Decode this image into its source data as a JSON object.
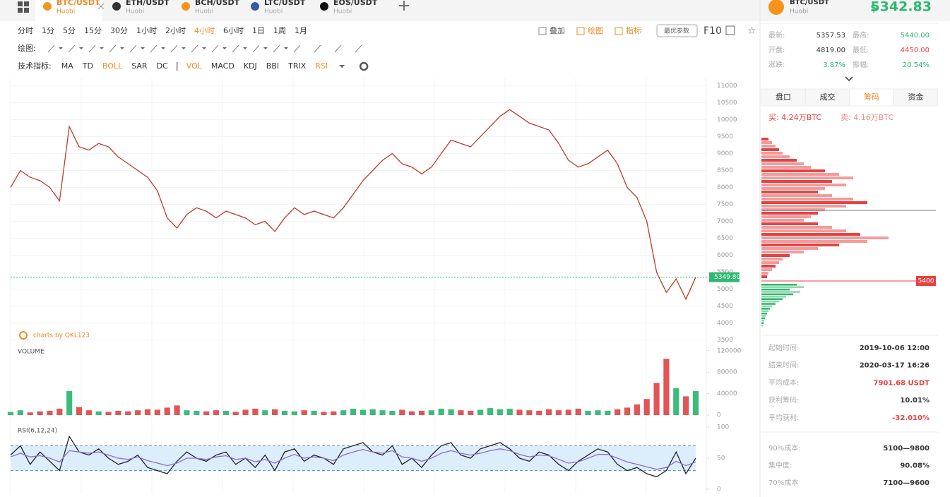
{
  "tabs": [
    {
      "pair": "BTC/USDT",
      "exchange": "Huobi",
      "icon_color": "#f7931a",
      "active": true
    },
    {
      "pair": "ETH/USDT",
      "exchange": "Huobi",
      "icon_color": "#333333"
    },
    {
      "pair": "BCH/USDT",
      "exchange": "Huobi",
      "icon_color": "#f7931a"
    },
    {
      "pair": "LTC/USDT",
      "exchange": "Huobi",
      "icon_color": "#345d9d"
    },
    {
      "pair": "EOS/USDT",
      "exchange": "Huobi",
      "icon_color": "#111111"
    }
  ],
  "timeframes": [
    {
      "label": "分时"
    },
    {
      "label": "1分"
    },
    {
      "label": "5分"
    },
    {
      "label": "15分"
    },
    {
      "label": "30分"
    },
    {
      "label": "1小时"
    },
    {
      "label": "2小时"
    },
    {
      "label": "4小时",
      "active": true
    },
    {
      "label": "6小时"
    },
    {
      "label": "1日"
    },
    {
      "label": "1周"
    },
    {
      "label": "1月"
    }
  ],
  "toolbar_actions": [
    "叠加",
    "绘图",
    "指标"
  ],
  "params_button": "最优参数",
  "f10": "F10",
  "draw_label": "绘图:",
  "indicator_label": "技术指标:",
  "indicators": [
    {
      "label": "MA"
    },
    {
      "label": "TD"
    },
    {
      "label": "BOLL",
      "active": true
    },
    {
      "label": "SAR"
    },
    {
      "label": "DC"
    },
    {
      "label": "VOL",
      "active": true
    },
    {
      "label": "MACD"
    },
    {
      "label": "KDJ"
    },
    {
      "label": "BBI"
    },
    {
      "label": "TRIX"
    },
    {
      "label": "RSI",
      "active": true
    }
  ],
  "chart_data": [
    {
      "type": "line",
      "color": "#c0392b",
      "values": [
        8000,
        8500,
        8300,
        8200,
        8000,
        7600,
        9800,
        9200,
        9100,
        9300,
        9200,
        8900,
        8700,
        8500,
        8300,
        7900,
        7100,
        6800,
        7200,
        7400,
        7300,
        7100,
        7300,
        7200,
        7100,
        6900,
        7000,
        6700,
        7100,
        7400,
        7200,
        7300,
        7200,
        7100,
        7400,
        7800,
        8200,
        8500,
        8800,
        9000,
        8700,
        8600,
        8400,
        8600,
        9000,
        9400,
        9300,
        9200,
        9500,
        9800,
        10100,
        10300,
        10100,
        9900,
        9800,
        9700,
        9300,
        8800,
        8600,
        8700,
        8900,
        9100,
        8700,
        8000,
        7700,
        7000,
        5500,
        4900,
        5300,
        4700,
        5350
      ],
      "ylim": [
        3300,
        11200
      ],
      "yticks": [
        3500,
        4000,
        4500,
        5000,
        5500,
        6000,
        6500,
        7000,
        7500,
        8000,
        8500,
        9000,
        9500,
        10000,
        10500,
        11000
      ],
      "grid": true,
      "last_price": {
        "value": 5349.8,
        "label": "5349.80"
      },
      "watermark": "charts by QKL123"
    },
    {
      "type": "bar",
      "title": "VOLUME",
      "values": [
        6000,
        9000,
        5000,
        7000,
        8000,
        12000,
        45000,
        15000,
        9000,
        7000,
        6000,
        8000,
        7000,
        9000,
        11000,
        10000,
        14000,
        18000,
        9000,
        8000,
        7000,
        9000,
        8000,
        6000,
        10000,
        12000,
        9000,
        11000,
        8000,
        7000,
        9000,
        8000,
        6000,
        7000,
        9000,
        12000,
        10000,
        11000,
        9000,
        8000,
        10000,
        7000,
        8000,
        9000,
        12000,
        11000,
        9000,
        8000,
        10000,
        13000,
        11000,
        12000,
        10000,
        9000,
        8000,
        11000,
        9000,
        10000,
        12000,
        8000,
        9000,
        8000,
        11000,
        14000,
        20000,
        30000,
        60000,
        105000,
        50000,
        35000,
        45000
      ],
      "ylim": [
        0,
        125000
      ],
      "yticks": [
        0,
        40000,
        80000,
        120000
      ]
    },
    {
      "type": "line",
      "title": "RSI(6,12,24)",
      "ylim": [
        0,
        100
      ],
      "yticks": [
        0,
        50,
        100
      ],
      "band": [
        30,
        70
      ],
      "series": [
        {
          "color": "#222222",
          "values": [
            55,
            70,
            40,
            60,
            45,
            30,
            85,
            60,
            55,
            65,
            50,
            40,
            45,
            55,
            35,
            30,
            25,
            45,
            60,
            50,
            45,
            55,
            60,
            40,
            50,
            35,
            55,
            30,
            60,
            65,
            45,
            55,
            50,
            40,
            65,
            70,
            75,
            60,
            55,
            70,
            40,
            50,
            35,
            55,
            70,
            75,
            55,
            50,
            65,
            70,
            75,
            65,
            50,
            45,
            60,
            55,
            40,
            30,
            45,
            55,
            65,
            60,
            40,
            30,
            35,
            25,
            20,
            30,
            60,
            25,
            50
          ]
        },
        {
          "color": "#8e6bd8",
          "values": [
            52,
            58,
            52,
            54,
            50,
            44,
            62,
            60,
            58,
            60,
            55,
            50,
            48,
            52,
            46,
            42,
            38,
            42,
            50,
            50,
            48,
            52,
            54,
            48,
            50,
            44,
            48,
            42,
            50,
            56,
            50,
            52,
            50,
            46,
            55,
            60,
            64,
            60,
            58,
            62,
            52,
            50,
            45,
            50,
            58,
            62,
            58,
            55,
            58,
            62,
            65,
            62,
            56,
            52,
            55,
            54,
            48,
            42,
            44,
            50,
            56,
            56,
            50,
            44,
            40,
            36,
            32,
            35,
            45,
            38,
            44
          ]
        }
      ]
    }
  ],
  "ticker": {
    "pair": "BTC/USDT",
    "exchange": "Huobi",
    "currency": "$",
    "price": "5342.83"
  },
  "stats": [
    {
      "label": "最新:",
      "value": "5357.53",
      "color": "#333333"
    },
    {
      "label": "最高:",
      "value": "5440.00",
      "color": "#2eb872"
    },
    {
      "label": "开盘:",
      "value": "4819.00",
      "color": "#333333"
    },
    {
      "label": "最低:",
      "value": "4450.00",
      "color": "#e84141"
    },
    {
      "label": "涨跌:",
      "value": "3.87%",
      "color": "#2eb872"
    },
    {
      "label": "振幅:",
      "value": "20.54%",
      "color": "#2eb872"
    }
  ],
  "panel_tabs": [
    {
      "label": "盘口"
    },
    {
      "label": "成交"
    },
    {
      "label": "筹码",
      "active": true
    },
    {
      "label": "资金"
    }
  ],
  "buy": "买: 4.24万BTC",
  "sell": "卖: 4.16万BTC",
  "chips": {
    "sell": [
      10,
      15,
      20,
      25,
      30,
      40,
      50,
      60,
      70,
      90,
      110,
      130,
      100,
      120,
      90,
      80,
      100,
      130,
      150,
      120,
      90,
      80,
      70,
      60,
      80,
      100,
      120,
      140,
      180,
      150,
      110,
      80,
      60,
      40,
      30,
      25,
      20,
      15,
      10,
      8
    ],
    "buy": [
      50,
      60,
      40,
      55,
      45,
      35,
      30,
      25,
      20,
      15,
      12,
      10,
      8,
      6,
      5,
      4,
      3,
      2
    ],
    "marker": "5400"
  },
  "info": [
    {
      "label": "起始时间:",
      "value": "2019-10-06 12:00"
    },
    {
      "label": "结束时间:",
      "value": "2020-03-17 16:26"
    },
    {
      "label": "平均成本:",
      "value": "7901.68 USDT",
      "color": "#e84141"
    },
    {
      "label": "获利筹码:",
      "value": "10.01%"
    },
    {
      "label": "平均获利:",
      "value": "-32.010%",
      "color": "#e84141"
    },
    {
      "label": "90%成本:",
      "value": "5100—9800"
    },
    {
      "label": "集中度:",
      "value": "90.08%"
    },
    {
      "label": "70%成本",
      "value": "7100—9600"
    }
  ]
}
